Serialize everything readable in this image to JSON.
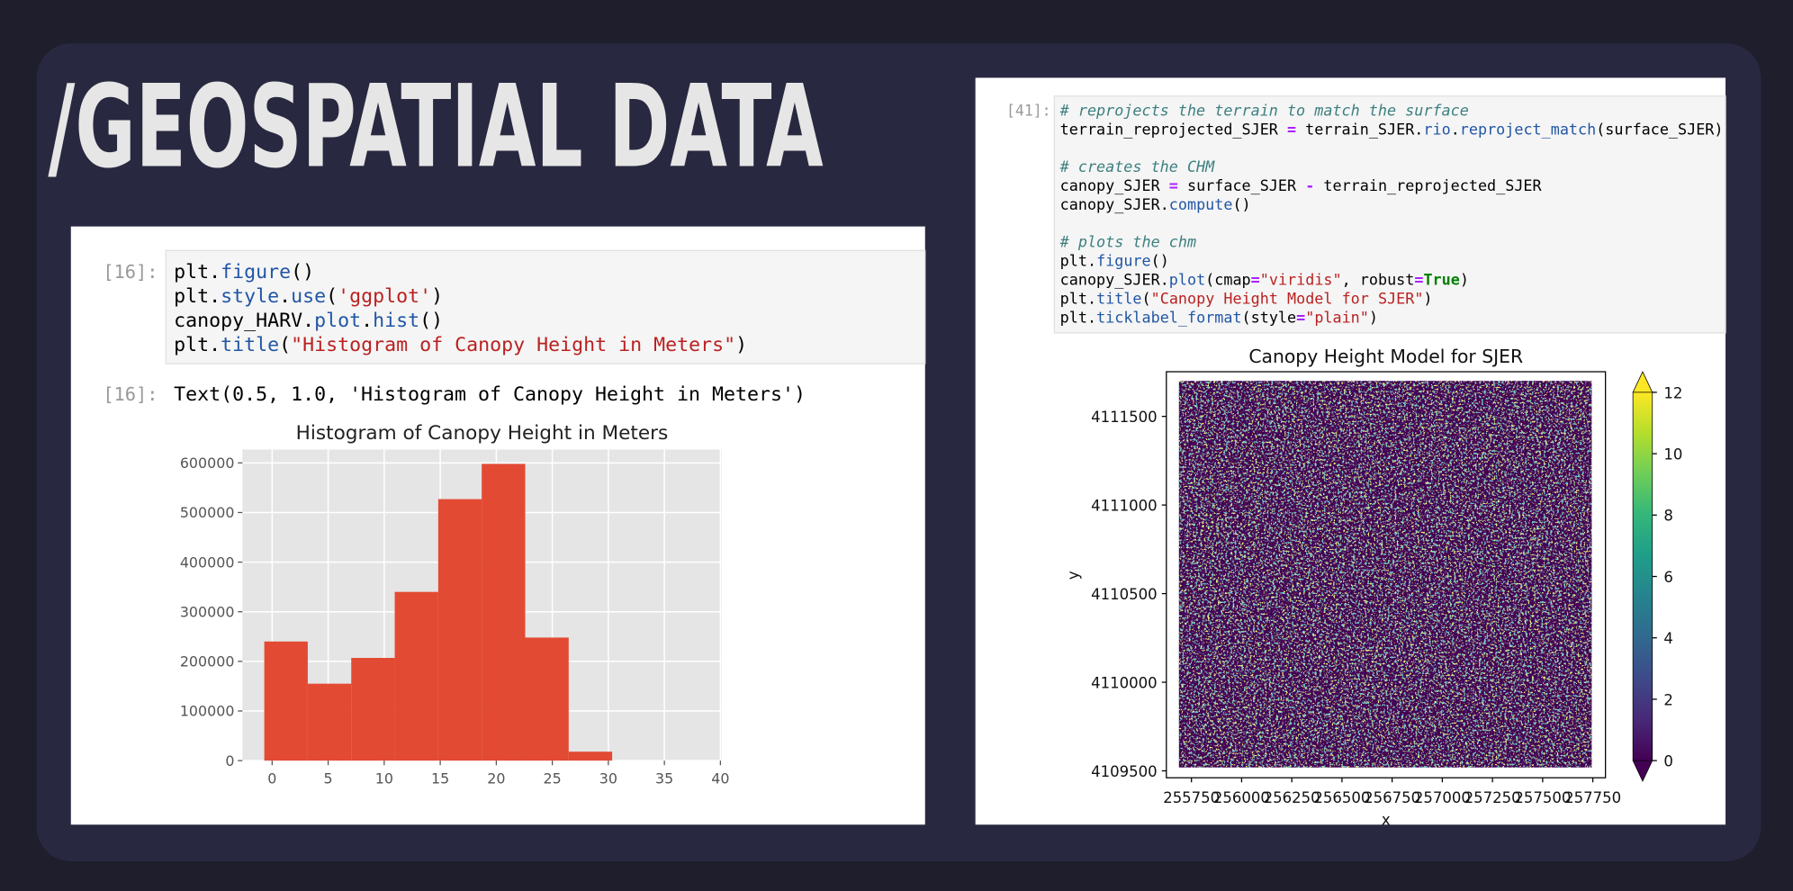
{
  "slide_title": "/GEOSPATIAL DATA",
  "left_cell": {
    "input_prompt": "[16]:",
    "code": [
      "plt.figure()",
      "plt.style.use('ggplot')",
      "canopy_HARV.plot.hist()",
      "plt.title(\"Histogram of Canopy Height in Meters\")"
    ],
    "output_prompt": "[16]:",
    "output": "Text(0.5, 1.0, 'Histogram of Canopy Height in Meters')"
  },
  "right_cell": {
    "input_prompt": "[41]:",
    "code_blocks": [
      [
        "# reprojects the terrain to match the surface",
        "terrain_reprojected_SJER = terrain_SJER.rio.reproject_match(surface_SJER)"
      ],
      [
        "# creates the CHM",
        "canopy_SJER = surface_SJER - terrain_reprojected_SJER",
        "canopy_SJER.compute()"
      ],
      [
        "# plots the chm",
        "plt.figure()",
        "canopy_SJER.plot(cmap=\"viridis\", robust=True)",
        "plt.title(\"Canopy Height Model for SJER\")",
        "plt.ticklabel_format(style=\"plain\")"
      ]
    ]
  },
  "chart_data": [
    {
      "type": "histogram",
      "title": "Histogram of Canopy Height in Meters",
      "bins": [
        -0.7,
        3.18,
        7.06,
        10.94,
        14.82,
        18.7,
        22.58,
        26.46,
        30.34
      ],
      "values": [
        240000,
        155000,
        207000,
        340000,
        527000,
        598000,
        248000,
        18000
      ],
      "color": "#E24A33",
      "xlim": [
        -2.65,
        40.1
      ],
      "xticks": [
        0,
        5,
        10,
        15,
        20,
        25,
        30,
        35,
        40
      ],
      "ylim": [
        0,
        627000
      ],
      "yticks": [
        0,
        100000,
        200000,
        300000,
        400000,
        500000,
        600000
      ],
      "grid": true
    },
    {
      "type": "raster",
      "title": "Canopy Height Model for SJER",
      "x_label": "x",
      "y_label": "y",
      "colormap": "viridis",
      "xlim": [
        255625,
        257813
      ],
      "xticks": [
        255750,
        256000,
        256250,
        256500,
        256750,
        257000,
        257250,
        257500,
        257750
      ],
      "ylim": [
        4109461,
        4111752
      ],
      "yticks": [
        4109500,
        4110000,
        4110500,
        4111000,
        4111500
      ],
      "colorbar_lim": [
        0,
        12
      ],
      "colorbar_ticks": [
        0,
        2,
        4,
        6,
        8,
        10,
        12
      ]
    }
  ]
}
